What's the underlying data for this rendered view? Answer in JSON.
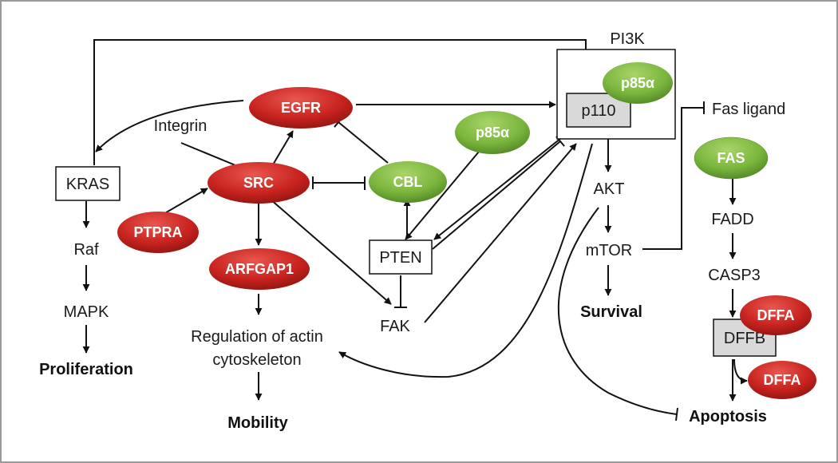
{
  "colors": {
    "red": "#c8231f",
    "green": "#7ab63d",
    "box_fill": "#d9d9d9",
    "line": "#111111"
  },
  "nodes": {
    "pi3k": "PI3K",
    "p110": "p110",
    "p85a_top": "p85α",
    "p85a_mid": "p85α",
    "egfr": "EGFR",
    "src": "SRC",
    "cbl": "CBL",
    "integrin": "Integrin",
    "kras": "KRAS",
    "raf": "Raf",
    "mapk": "MAPK",
    "proliferation": "Proliferation",
    "ptpra": "PTPRA",
    "arfgap1": "ARFGAP1",
    "regulation_line1": "Regulation of actin",
    "regulation_line2": "cytoskeleton",
    "mobility": "Mobility",
    "pten": "PTEN",
    "fak": "FAK",
    "akt": "AKT",
    "mtor": "mTOR",
    "survival": "Survival",
    "fas_ligand": "Fas ligand",
    "fas": "FAS",
    "fadd": "FADD",
    "casp3": "CASP3",
    "dffa_top": "DFFA",
    "dffb": "DFFB",
    "dffa_bottom": "DFFA",
    "apoptosis": "Apoptosis"
  }
}
